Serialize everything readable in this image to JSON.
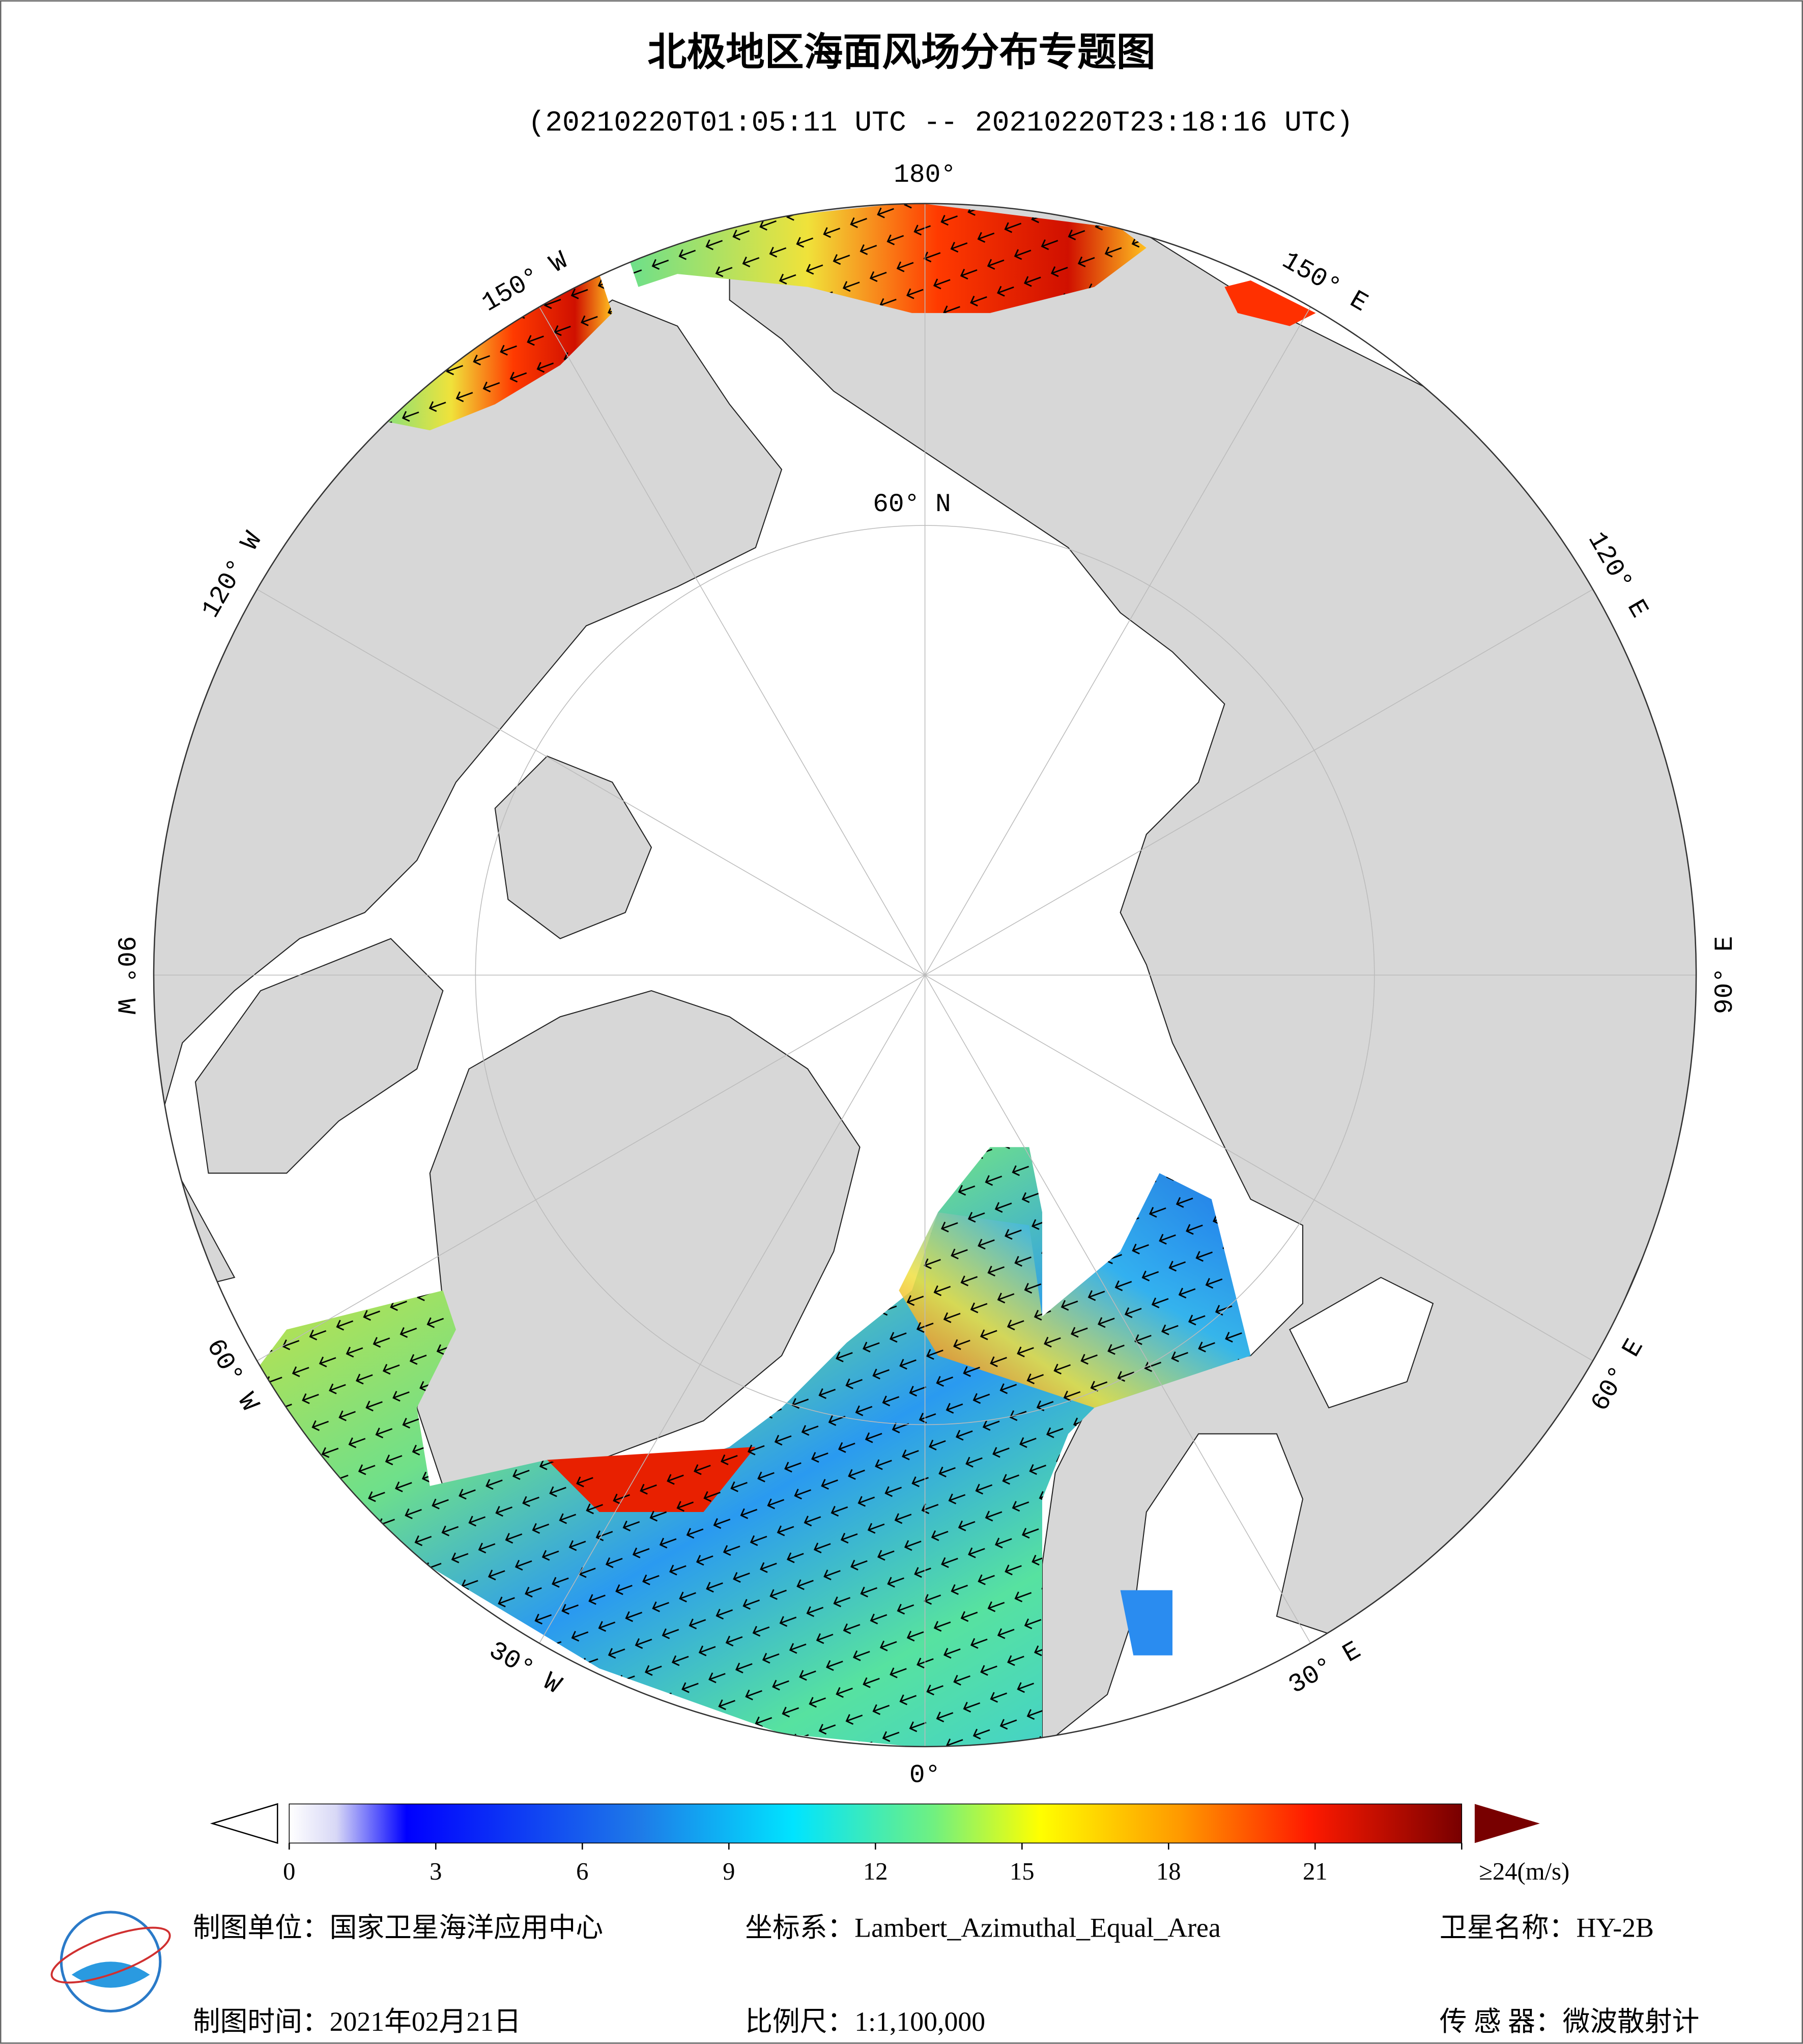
{
  "header": {
    "title": "北极地区海面风场分布专题图",
    "subtitle": "(20210220T01:05:11 UTC -- 20210220T23:18:16 UTC)"
  },
  "map": {
    "meridian_labels": [
      "0°",
      "30° E",
      "60° E",
      "90° E",
      "120° E",
      "150° E",
      "180°",
      "150° W",
      "120° W",
      "90° W",
      "60° W",
      "30° W"
    ],
    "parallel_label": "60° N"
  },
  "colorbar": {
    "lim": [
      0,
      24
    ],
    "ticks": [
      0,
      3,
      6,
      9,
      12,
      15,
      18,
      21,
      {
        "value": 24,
        "label": "≥24(m/s)"
      }
    ]
  },
  "footer": {
    "unit": "制图单位：国家卫星海洋应用中心",
    "date": "制图时间：2021年02月21日",
    "crs": "坐标系：Lambert_Azimuthal_Equal_Area",
    "scale": "比例尺：1:1,100,000",
    "satellite": "卫星名称：HY-2B",
    "sensor": "传 感 器：微波散射计"
  }
}
